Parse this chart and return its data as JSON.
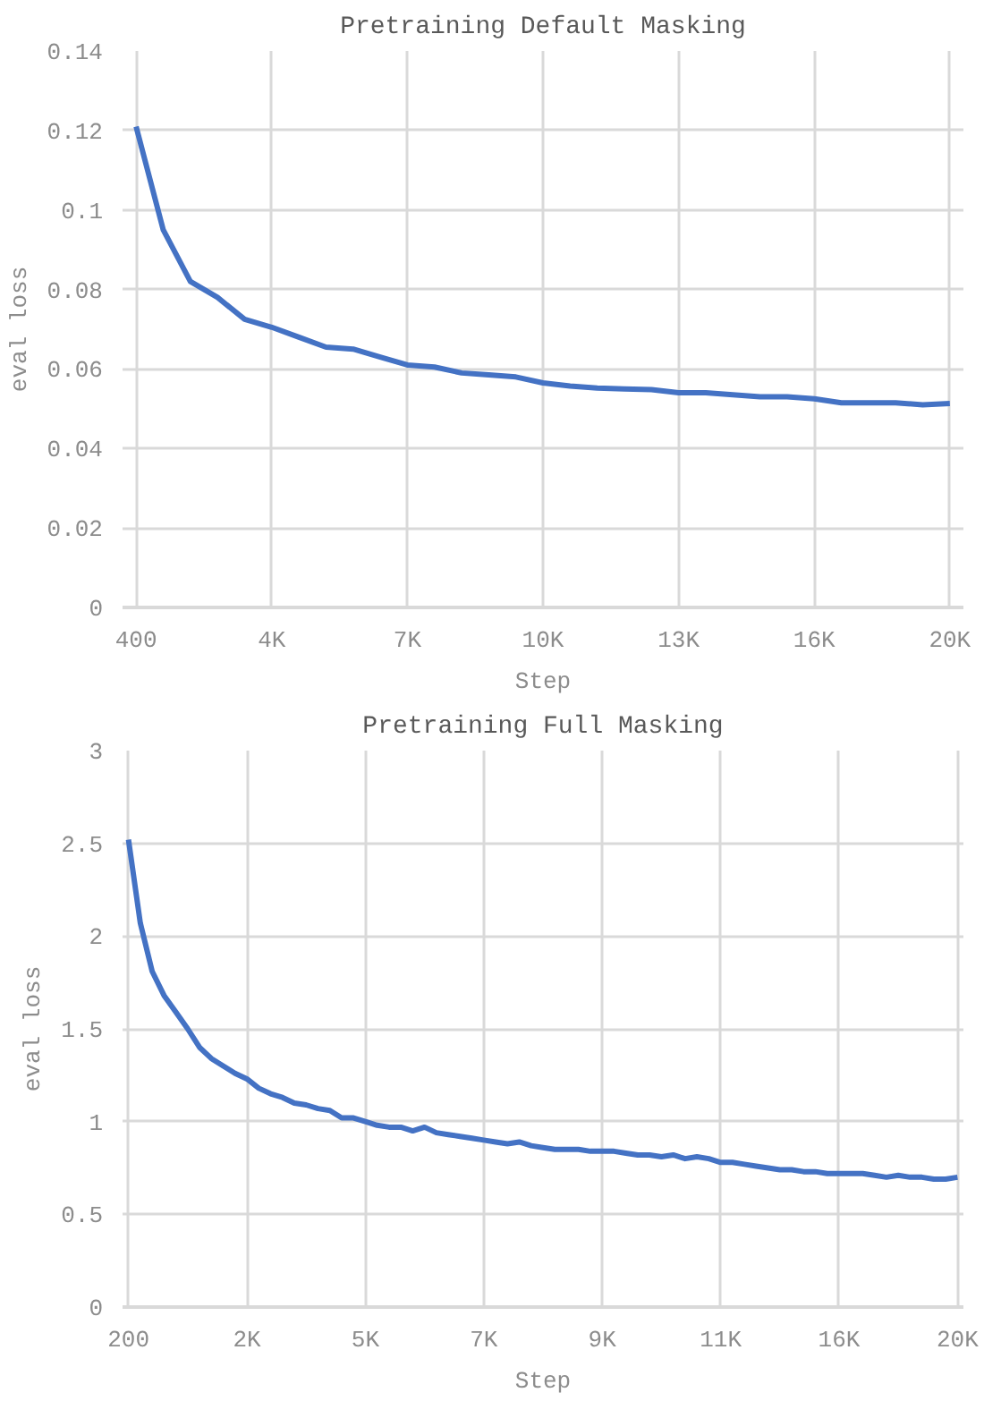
{
  "chart_data": [
    {
      "type": "line",
      "title": "Pretraining Default Masking",
      "xlabel": "Step",
      "ylabel": "eval loss",
      "categories": [
        "400",
        null,
        null,
        null,
        null,
        "4K",
        null,
        null,
        null,
        null,
        "7K",
        null,
        null,
        null,
        null,
        "10K",
        null,
        null,
        null,
        null,
        "13K",
        null,
        null,
        null,
        null,
        "16K",
        null,
        null,
        null,
        null,
        "20K"
      ],
      "series": [
        {
          "color": "#4472c4",
          "values": [
            0.121,
            0.095,
            0.082,
            0.078,
            0.0725,
            0.0705,
            0.068,
            0.0655,
            0.065,
            0.063,
            0.061,
            0.0605,
            0.059,
            0.0585,
            0.058,
            0.0565,
            0.0557,
            0.0552,
            0.055,
            0.0548,
            0.054,
            0.054,
            0.0535,
            0.053,
            0.053,
            0.0525,
            0.0515,
            0.0515,
            0.0515,
            0.051,
            0.0513
          ]
        }
      ],
      "ylim": [
        0,
        0.14
      ],
      "yticks": [
        0,
        0.02,
        0.04,
        0.06,
        0.08,
        0.1,
        0.12,
        0.14
      ],
      "grid": true,
      "marker": "none",
      "line_style": "solid"
    },
    {
      "type": "line",
      "title": "Pretraining Full Masking",
      "xlabel": "Step",
      "ylabel": "eval loss",
      "categories": [
        "200",
        null,
        null,
        null,
        null,
        null,
        null,
        null,
        null,
        null,
        "2K",
        null,
        null,
        null,
        null,
        null,
        null,
        null,
        null,
        null,
        "5K",
        null,
        null,
        null,
        null,
        null,
        null,
        null,
        null,
        null,
        "7K",
        null,
        null,
        null,
        null,
        null,
        null,
        null,
        null,
        null,
        "9K",
        null,
        null,
        null,
        null,
        null,
        null,
        null,
        null,
        null,
        "11K",
        null,
        null,
        null,
        null,
        null,
        null,
        null,
        null,
        null,
        "16K",
        null,
        null,
        null,
        null,
        null,
        null,
        null,
        null,
        null,
        "20K"
      ],
      "series": [
        {
          "color": "#4472c4",
          "values": [
            2.52,
            2.07,
            1.81,
            1.68,
            1.59,
            1.5,
            1.4,
            1.34,
            1.3,
            1.26,
            1.23,
            1.18,
            1.15,
            1.13,
            1.1,
            1.09,
            1.07,
            1.06,
            1.02,
            1.02,
            1.0,
            0.98,
            0.97,
            0.97,
            0.95,
            0.97,
            0.94,
            0.93,
            0.92,
            0.91,
            0.9,
            0.89,
            0.88,
            0.89,
            0.87,
            0.86,
            0.85,
            0.85,
            0.85,
            0.84,
            0.84,
            0.84,
            0.83,
            0.82,
            0.82,
            0.81,
            0.82,
            0.8,
            0.81,
            0.8,
            0.78,
            0.78,
            0.77,
            0.76,
            0.75,
            0.74,
            0.74,
            0.73,
            0.73,
            0.72,
            0.72,
            0.72,
            0.72,
            0.71,
            0.7,
            0.71,
            0.7,
            0.7,
            0.69,
            0.69,
            0.7
          ]
        }
      ],
      "ylim": [
        0,
        3
      ],
      "yticks": [
        0,
        0.5,
        1,
        1.5,
        2,
        2.5,
        3
      ],
      "grid": true,
      "marker": "none",
      "line_style": "solid"
    }
  ]
}
